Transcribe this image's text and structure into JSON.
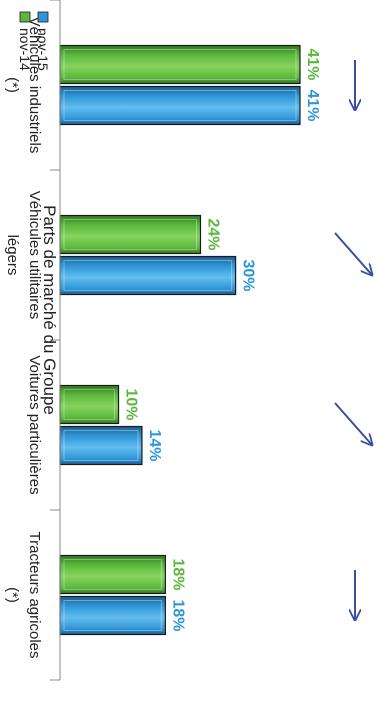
{
  "chart_data": {
    "type": "bar",
    "title": "Parts de marché du Groupe",
    "categories": [
      [
        "Véhicules industriels",
        "(*)"
      ],
      [
        "Véhicules utilitaires",
        "légers"
      ],
      [
        "Voitures particulières"
      ],
      [
        "Tracteurs agricoles",
        "(*)"
      ]
    ],
    "series": [
      {
        "name": "nov-14",
        "values": [
          41,
          24,
          10,
          18
        ],
        "labels": [
          "41%",
          "24%",
          "10%",
          "18%"
        ],
        "color": "#5cb83d"
      },
      {
        "name": "nov-15",
        "values": [
          41,
          30,
          14,
          18
        ],
        "labels": [
          "41%",
          "30%",
          "14%",
          "18%"
        ],
        "color": "#2f96d6"
      }
    ],
    "trend_arrows": [
      "flat",
      "up",
      "up",
      "flat"
    ],
    "arrow_color": "#3a4fa0",
    "ylim": [
      0,
      45
    ],
    "legend_position": "bottom-left",
    "grid": false,
    "orientation": "rotated-90-cw"
  }
}
